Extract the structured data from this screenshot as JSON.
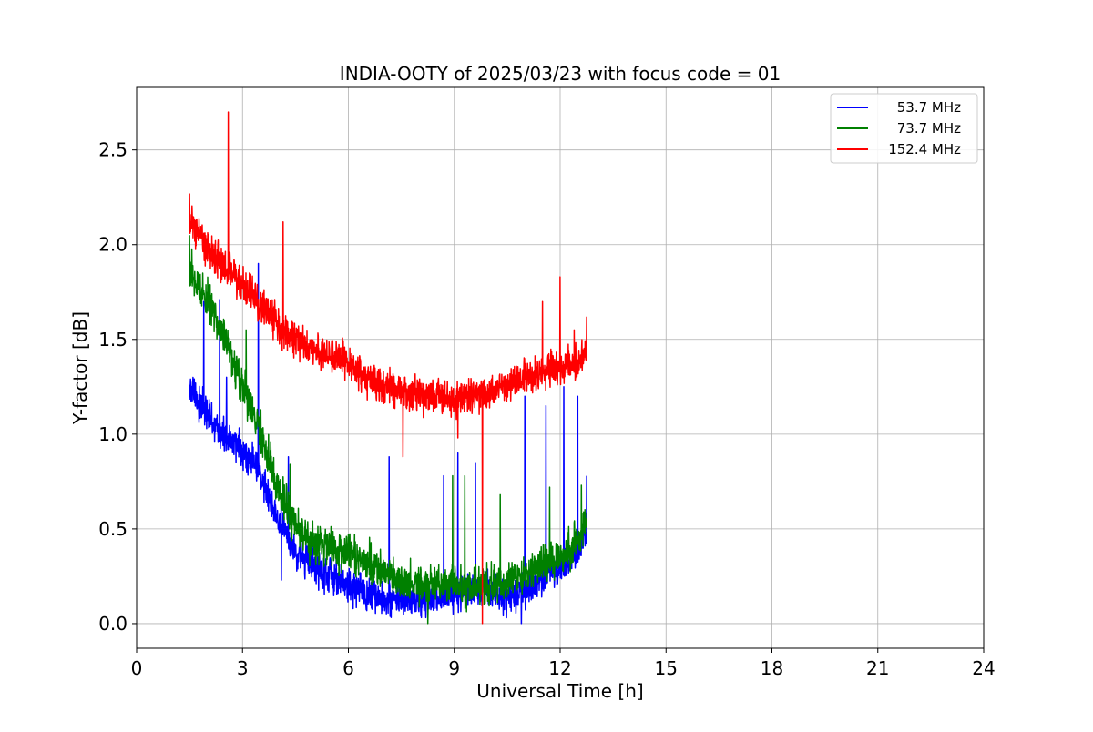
{
  "chart_data": {
    "type": "line",
    "title": "INDIA-OOTY of 2025/03/23 with focus code = 01",
    "xlabel": "Universal Time [h]",
    "ylabel": "Y-factor [dB]",
    "xlim": [
      0,
      24
    ],
    "ylim": [
      -0.13,
      2.83
    ],
    "xticks": [
      0,
      3,
      6,
      9,
      12,
      15,
      18,
      21,
      24
    ],
    "xtick_labels": [
      "0",
      "3",
      "6",
      "9",
      "12",
      "15",
      "18",
      "21",
      "24"
    ],
    "yticks": [
      0.0,
      0.5,
      1.0,
      1.5,
      2.0,
      2.5
    ],
    "ytick_labels": [
      "0.0",
      "0.5",
      "1.0",
      "1.5",
      "2.0",
      "2.5"
    ],
    "grid": true,
    "legend_position": "top-right",
    "series": [
      {
        "name": "53.7 MHz",
        "color": "#0000ff",
        "x": [
          1.5,
          2.0,
          2.5,
          3.0,
          3.5,
          4.0,
          4.5,
          5.0,
          5.5,
          6.0,
          6.5,
          7.0,
          7.5,
          8.0,
          8.5,
          9.0,
          9.5,
          10.0,
          10.5,
          11.0,
          11.5,
          12.0,
          12.5,
          12.75
        ],
        "y": [
          1.25,
          1.1,
          0.98,
          0.92,
          0.8,
          0.55,
          0.38,
          0.3,
          0.25,
          0.2,
          0.16,
          0.13,
          0.12,
          0.12,
          0.14,
          0.16,
          0.18,
          0.18,
          0.14,
          0.18,
          0.25,
          0.3,
          0.38,
          0.5
        ],
        "noise": 0.045,
        "spikes": [
          [
            1.9,
            1.7
          ],
          [
            2.35,
            1.71
          ],
          [
            2.55,
            1.3
          ],
          [
            3.45,
            1.9
          ],
          [
            4.1,
            0.23
          ],
          [
            4.3,
            0.88
          ],
          [
            7.15,
            0.88
          ],
          [
            8.7,
            0.78
          ],
          [
            9.1,
            0.9
          ],
          [
            9.6,
            0.85
          ],
          [
            10.9,
            0.0
          ],
          [
            11.0,
            1.2
          ],
          [
            11.6,
            1.15
          ],
          [
            12.1,
            1.25
          ],
          [
            12.5,
            1.2
          ],
          [
            12.75,
            0.78
          ]
        ]
      },
      {
        "name": "73.7 MHz",
        "color": "#008000",
        "x": [
          1.5,
          2.0,
          2.5,
          3.0,
          3.5,
          4.0,
          4.5,
          5.0,
          5.5,
          6.0,
          6.5,
          7.0,
          7.5,
          8.0,
          8.5,
          9.0,
          9.5,
          10.0,
          10.5,
          11.0,
          11.5,
          12.0,
          12.5,
          12.75
        ],
        "y": [
          1.88,
          1.7,
          1.5,
          1.25,
          1.02,
          0.72,
          0.52,
          0.43,
          0.4,
          0.37,
          0.33,
          0.27,
          0.22,
          0.2,
          0.21,
          0.2,
          0.19,
          0.2,
          0.22,
          0.26,
          0.3,
          0.35,
          0.45,
          0.55
        ],
        "noise": 0.05,
        "spikes": [
          [
            1.5,
            2.05
          ],
          [
            3.1,
            1.55
          ],
          [
            4.35,
            0.84
          ],
          [
            8.25,
            0.0
          ],
          [
            8.95,
            0.78
          ],
          [
            9.3,
            0.78
          ],
          [
            10.3,
            0.68
          ],
          [
            11.7,
            0.72
          ],
          [
            12.6,
            0.73
          ]
        ]
      },
      {
        "name": "152.4 MHz",
        "color": "#ff0000",
        "x": [
          1.5,
          2.0,
          2.5,
          3.0,
          3.5,
          4.0,
          4.5,
          5.0,
          5.5,
          6.0,
          6.5,
          7.0,
          7.5,
          8.0,
          8.5,
          9.0,
          9.5,
          10.0,
          10.5,
          11.0,
          11.5,
          12.0,
          12.5,
          12.75
        ],
        "y": [
          2.15,
          1.98,
          1.88,
          1.8,
          1.68,
          1.58,
          1.5,
          1.45,
          1.42,
          1.38,
          1.3,
          1.25,
          1.22,
          1.2,
          1.2,
          1.18,
          1.2,
          1.22,
          1.26,
          1.3,
          1.32,
          1.35,
          1.38,
          1.42
        ],
        "noise": 0.045,
        "spikes": [
          [
            1.5,
            2.27
          ],
          [
            2.6,
            2.7
          ],
          [
            4.15,
            2.12
          ],
          [
            7.55,
            0.88
          ],
          [
            9.1,
            0.98
          ],
          [
            9.8,
            0.0
          ],
          [
            11.5,
            1.7
          ],
          [
            12.0,
            1.83
          ],
          [
            12.4,
            1.55
          ],
          [
            12.75,
            1.62
          ]
        ]
      }
    ]
  }
}
